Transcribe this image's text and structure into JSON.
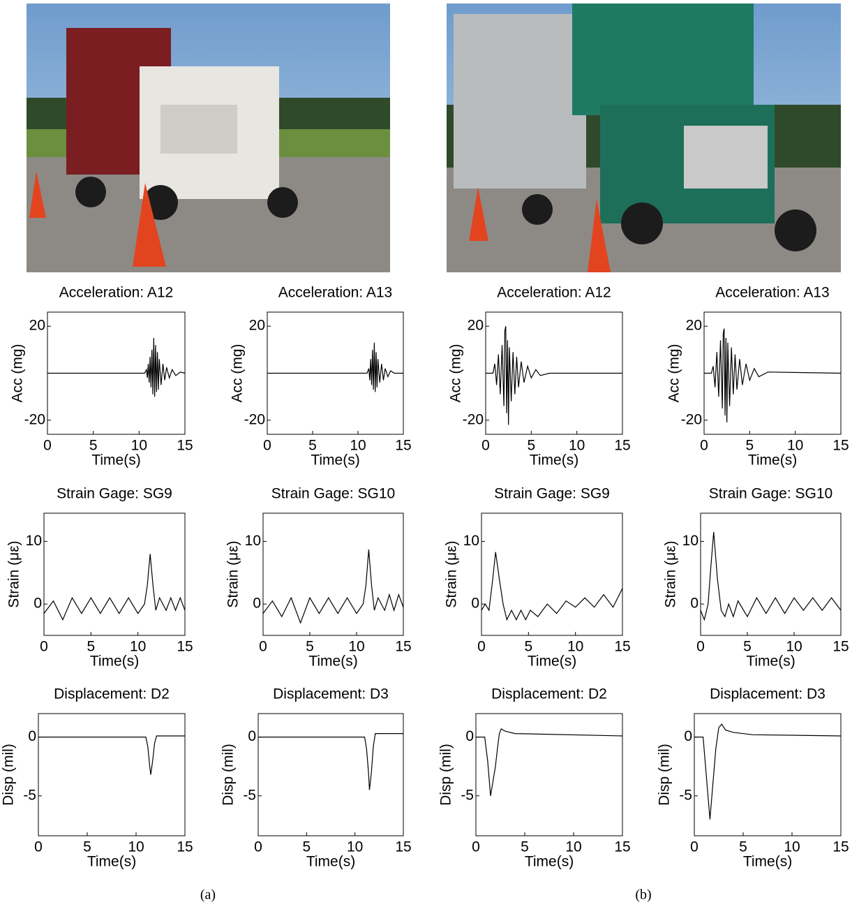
{
  "chart_data": [
    {
      "type": "line",
      "title": "Acceleration: A12",
      "xlabel": "Time(s)",
      "ylabel": "Acc (mg)",
      "color": "#000000",
      "xlim": [
        0,
        15
      ],
      "ylim": [
        -26,
        26
      ],
      "xticks": [
        0,
        5,
        10,
        15
      ],
      "yticks": [
        -20,
        20
      ],
      "x": [
        0,
        10.6,
        10.8,
        10.9,
        11,
        11.1,
        11.2,
        11.3,
        11.4,
        11.5,
        11.6,
        11.7,
        11.8,
        11.9,
        12,
        12.1,
        12.2,
        12.4,
        12.6,
        12.8,
        13,
        13.3,
        13.6,
        14,
        14.5,
        15
      ],
      "values": [
        0,
        0,
        1.5,
        -2,
        4,
        -4,
        7,
        -6,
        10,
        -9,
        15,
        -10,
        12,
        -8,
        9,
        -7,
        6,
        -5,
        4,
        -3,
        2.5,
        -2,
        1.5,
        -1,
        0.5,
        0
      ]
    },
    {
      "type": "line",
      "title": "Acceleration: A13",
      "xlabel": "Time(s)",
      "ylabel": "Acc (mg)",
      "color": "#000000",
      "xlim": [
        0,
        15
      ],
      "ylim": [
        -26,
        26
      ],
      "xticks": [
        0,
        5,
        10,
        15
      ],
      "yticks": [
        -20,
        20
      ],
      "x": [
        0,
        11,
        11.2,
        11.3,
        11.4,
        11.5,
        11.6,
        11.7,
        11.8,
        11.9,
        12,
        12.1,
        12.2,
        12.4,
        12.6,
        12.8,
        13,
        13.3,
        13.6,
        14,
        15
      ],
      "values": [
        0,
        0,
        2,
        -3,
        6,
        -5,
        10,
        -7,
        13,
        -8,
        9,
        -6,
        6,
        -4,
        4,
        -3,
        2,
        -1.5,
        1,
        0,
        0
      ]
    },
    {
      "type": "line",
      "title": "Acceleration: A12",
      "xlabel": "Time(s)",
      "ylabel": "Acc (mg)",
      "color": "#000000",
      "xlim": [
        0,
        15
      ],
      "ylim": [
        -26,
        26
      ],
      "xticks": [
        0,
        5,
        10,
        15
      ],
      "yticks": [
        -20,
        20
      ],
      "x": [
        0,
        0.8,
        1,
        1.2,
        1.4,
        1.6,
        1.8,
        2,
        2.1,
        2.2,
        2.3,
        2.4,
        2.5,
        2.6,
        2.8,
        3,
        3.2,
        3.4,
        3.6,
        3.9,
        4.2,
        4.6,
        5,
        5.5,
        6,
        7,
        15
      ],
      "values": [
        0,
        0,
        4,
        -5,
        8,
        -9,
        12,
        -14,
        18,
        20,
        -17,
        14,
        -22,
        11,
        -12,
        9,
        -9,
        7,
        -6,
        5,
        -4,
        3,
        -2,
        1.5,
        -1,
        0,
        0
      ]
    },
    {
      "type": "line",
      "title": "Acceleration: A13",
      "xlabel": "Time(s)",
      "ylabel": "Acc (mg)",
      "color": "#000000",
      "xlim": [
        0,
        15
      ],
      "ylim": [
        -26,
        26
      ],
      "xticks": [
        0,
        5,
        10,
        15
      ],
      "yticks": [
        -20,
        20
      ],
      "x": [
        0,
        0.8,
        1,
        1.2,
        1.4,
        1.6,
        1.8,
        2,
        2.1,
        2.2,
        2.3,
        2.4,
        2.5,
        2.6,
        2.8,
        3,
        3.2,
        3.4,
        3.6,
        3.9,
        4.2,
        4.6,
        5,
        5.5,
        6,
        7,
        15
      ],
      "values": [
        0,
        0,
        3,
        -6,
        9,
        -10,
        14,
        -15,
        17,
        19,
        -18,
        15,
        -21,
        13,
        -14,
        11,
        -9,
        8,
        -7,
        6,
        -5,
        4,
        -3,
        2,
        -1.5,
        0.5,
        0
      ]
    },
    {
      "type": "line",
      "title": "Strain Gage: SG9",
      "xlabel": "Time(s)",
      "ylabel": "Strain (με)",
      "color": "#000000",
      "xlim": [
        0,
        15
      ],
      "ylim": [
        -5,
        14.5
      ],
      "xticks": [
        0,
        5,
        10,
        15
      ],
      "yticks": [
        0,
        10
      ],
      "x": [
        0,
        1,
        2,
        3,
        4,
        5,
        6,
        7,
        8,
        9,
        10,
        10.7,
        11,
        11.3,
        11.6,
        11.9,
        12.3,
        13,
        13.5,
        14,
        14.5,
        15
      ],
      "values": [
        -1.5,
        0.5,
        -2.5,
        1,
        -1.5,
        1,
        -1.5,
        1,
        -1.5,
        1,
        -1.5,
        0,
        3,
        8,
        3,
        -1,
        1,
        -1,
        1,
        -1,
        1,
        -1
      ]
    },
    {
      "type": "line",
      "title": "Strain Gage: SG10",
      "xlabel": "Time(s)",
      "ylabel": "Strain (με)",
      "color": "#000000",
      "xlim": [
        0,
        15
      ],
      "ylim": [
        -5,
        14.5
      ],
      "xticks": [
        0,
        5,
        10,
        15
      ],
      "yticks": [
        0,
        10
      ],
      "x": [
        0,
        1,
        2,
        3,
        4,
        5,
        6,
        7,
        8,
        9,
        10,
        10.7,
        11,
        11.3,
        11.6,
        11.9,
        12.3,
        13,
        13.5,
        14,
        14.5,
        15
      ],
      "values": [
        -1.5,
        0.5,
        -2,
        1,
        -3,
        1,
        -1.5,
        1,
        -1.5,
        1,
        -1.5,
        0,
        3,
        8.7,
        3,
        -1,
        1,
        -1,
        1.5,
        -1,
        1.5,
        -0.5
      ]
    },
    {
      "type": "line",
      "title": "Strain Gage: SG9",
      "xlabel": "Time(s)",
      "ylabel": "Strain (με)",
      "color": "#000000",
      "xlim": [
        0,
        15
      ],
      "ylim": [
        -5,
        14.5
      ],
      "xticks": [
        0,
        5,
        10,
        15
      ],
      "yticks": [
        0,
        10
      ],
      "x": [
        0,
        0.4,
        0.8,
        1.2,
        1.5,
        1.9,
        2.3,
        2.7,
        3.2,
        3.7,
        4.2,
        4.7,
        5.2,
        6,
        7,
        8,
        9,
        10,
        11,
        12,
        13,
        14,
        15
      ],
      "values": [
        -1,
        0,
        -1,
        4,
        8.3,
        4,
        0,
        -2.5,
        -1,
        -2.5,
        -1,
        -2.5,
        -1,
        -2,
        0,
        -1.5,
        0.5,
        -0.5,
        1,
        -0.5,
        1.5,
        -0.5,
        2.5
      ]
    },
    {
      "type": "line",
      "title": "Strain Gage: SG10",
      "xlabel": "Time(s)",
      "ylabel": "Strain (με)",
      "color": "#000000",
      "xlim": [
        0,
        15
      ],
      "ylim": [
        -5,
        14.5
      ],
      "xticks": [
        0,
        5,
        10,
        15
      ],
      "yticks": [
        0,
        10
      ],
      "x": [
        0,
        0.4,
        0.8,
        1.1,
        1.4,
        1.8,
        2.2,
        2.6,
        3,
        3.5,
        4,
        5,
        6,
        7,
        8,
        9,
        10,
        11,
        12,
        13,
        14,
        15
      ],
      "values": [
        -1,
        -2.5,
        0,
        6,
        11.5,
        4,
        -1,
        -2,
        0,
        -2,
        0.5,
        -2,
        1,
        -1.5,
        1,
        -1.5,
        1,
        -1,
        1,
        -1,
        1,
        -1
      ]
    },
    {
      "type": "line",
      "title": "Displacement: D2",
      "xlabel": "Time(s)",
      "ylabel": "Disp (mil)",
      "color": "#000000",
      "xlim": [
        0,
        15
      ],
      "ylim": [
        -8.4,
        2
      ],
      "xticks": [
        0,
        5,
        10,
        15
      ],
      "yticks": [
        -5,
        0
      ],
      "x": [
        0,
        11,
        11.2,
        11.4,
        11.5,
        11.7,
        11.9,
        12.1,
        12.5,
        15
      ],
      "values": [
        0,
        0,
        -0.8,
        -2.5,
        -3.2,
        -2,
        -0.5,
        0.1,
        0.1,
        0.1
      ]
    },
    {
      "type": "line",
      "title": "Displacement: D3",
      "xlabel": "Time(s)",
      "ylabel": "Disp (mil)",
      "color": "#000000",
      "xlim": [
        0,
        15
      ],
      "ylim": [
        -8.4,
        2
      ],
      "xticks": [
        0,
        5,
        10,
        15
      ],
      "yticks": [
        -5,
        0
      ],
      "x": [
        0,
        11,
        11.2,
        11.4,
        11.5,
        11.7,
        11.9,
        12.1,
        12.5,
        15
      ],
      "values": [
        0,
        0,
        -1,
        -3,
        -4.5,
        -3,
        -0.8,
        0.3,
        0.3,
        0.3
      ]
    },
    {
      "type": "line",
      "title": "Displacement: D2",
      "xlabel": "Time(s)",
      "ylabel": "Disp (mil)",
      "color": "#000000",
      "xlim": [
        0,
        15
      ],
      "ylim": [
        -8.4,
        2
      ],
      "xticks": [
        0,
        5,
        10,
        15
      ],
      "yticks": [
        -5,
        0
      ],
      "x": [
        0,
        0.9,
        1.2,
        1.5,
        1.8,
        2,
        2.2,
        2.4,
        2.6,
        3,
        4,
        15
      ],
      "values": [
        0,
        0,
        -2,
        -5,
        -3.5,
        -2.5,
        -1,
        0.3,
        0.7,
        0.5,
        0.3,
        0.1
      ]
    },
    {
      "type": "line",
      "title": "Displacement: D3",
      "xlabel": "Time(s)",
      "ylabel": "Disp (mil)",
      "color": "#000000",
      "xlim": [
        0,
        15
      ],
      "ylim": [
        -8.4,
        2
      ],
      "xticks": [
        0,
        5,
        10,
        15
      ],
      "yticks": [
        -5,
        0
      ],
      "x": [
        0,
        0.9,
        1.2,
        1.6,
        1.9,
        2.2,
        2.5,
        2.8,
        3.2,
        4,
        6,
        15
      ],
      "values": [
        0,
        0,
        -3,
        -7,
        -4,
        -1,
        0.8,
        1.1,
        0.6,
        0.4,
        0.2,
        0.1
      ]
    }
  ],
  "captions": [
    "(a)",
    "(b)"
  ]
}
